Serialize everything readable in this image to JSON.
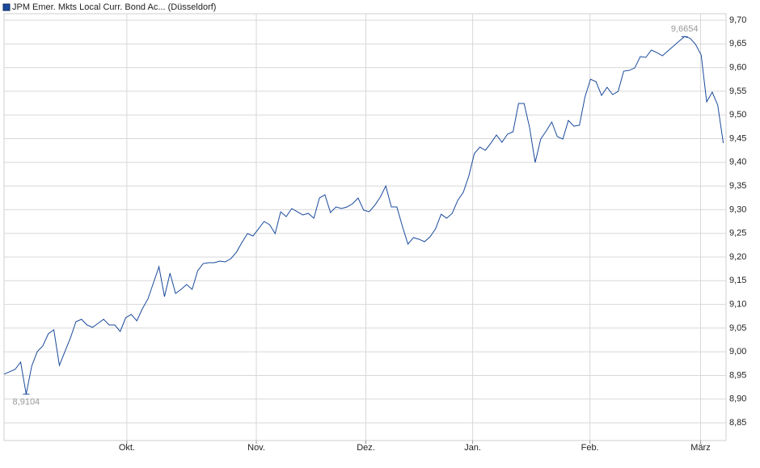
{
  "chart_data": {
    "type": "line",
    "legend": "JPM Emer. Mkts Local Curr. Bond Ac... (Düsseldorf)",
    "series": [
      {
        "name": "JPM Emer. Mkts Local Curr. Bond Ac... (Düsseldorf)",
        "color": "#1a4a9c",
        "values": [
          8.9526,
          8.9577,
          8.9628,
          8.9782,
          8.9104,
          8.9696,
          9.0003,
          9.0123,
          9.0379,
          9.0464,
          8.9713,
          9.0003,
          9.0293,
          9.0635,
          9.0686,
          9.0566,
          9.0515,
          9.0601,
          9.0686,
          9.0566,
          9.0566,
          9.043,
          9.072,
          9.0788,
          9.0652,
          9.0908,
          9.1113,
          9.1454,
          9.1795,
          9.1164,
          9.1659,
          9.1232,
          9.1317,
          9.142,
          9.1317,
          9.171,
          9.1863,
          9.188,
          9.188,
          9.1915,
          9.1898,
          9.1966,
          9.2102,
          9.2307,
          9.2495,
          9.2444,
          9.2597,
          9.2751,
          9.2683,
          9.2495,
          9.2956,
          9.2853,
          9.3024,
          9.2956,
          9.2888,
          9.2922,
          9.282,
          9.3246,
          9.3314,
          9.2939,
          9.3058,
          9.3024,
          9.3058,
          9.3126,
          9.3246,
          9.299,
          9.2956,
          9.3092,
          9.3263,
          9.3502,
          9.3058,
          9.3058,
          9.2648,
          9.2273,
          9.241,
          9.2376,
          9.2324,
          9.2427,
          9.2597,
          9.2904,
          9.282,
          9.2922,
          9.3195,
          9.3365,
          9.3706,
          9.4184,
          9.4321,
          9.4253,
          9.4406,
          9.4577,
          9.4423,
          9.4594,
          9.4645,
          9.5242,
          9.5242,
          9.473,
          9.3997,
          9.4491,
          9.4662,
          9.485,
          9.4543,
          9.4491,
          9.4884,
          9.4764,
          9.4782,
          9.5379,
          9.5754,
          9.5703,
          9.5413,
          9.5584,
          9.543,
          9.5498,
          9.5925,
          9.5942,
          9.5993,
          9.6232,
          9.6215,
          9.6369,
          9.6317,
          9.6249,
          9.6352,
          9.6454,
          9.6556,
          9.6654,
          9.662,
          9.6488,
          9.6266,
          9.5276,
          9.5481,
          9.5208,
          9.4406
        ]
      }
    ],
    "annotations": [
      {
        "value": 8.9104,
        "label": "8,9104"
      },
      {
        "value": 9.6654,
        "label": "9,6654"
      }
    ],
    "xlim": [
      0,
      130.5
    ],
    "xticks": [
      {
        "value": 22.2,
        "label": "Okt."
      },
      {
        "value": 45.6,
        "label": "Nov."
      },
      {
        "value": 65.4,
        "label": "Dez."
      },
      {
        "value": 84.7,
        "label": "Jan."
      },
      {
        "value": 105.9,
        "label": "Feb."
      },
      {
        "value": 125.9,
        "label": "März"
      }
    ],
    "ylim": [
      8.8126,
      9.7137
    ],
    "yticks": [
      {
        "value": 8.85,
        "label": "8,85"
      },
      {
        "value": 8.9,
        "label": "8,90"
      },
      {
        "value": 8.95,
        "label": "8,95"
      },
      {
        "value": 9.0,
        "label": "9,00"
      },
      {
        "value": 9.05,
        "label": "9,05"
      },
      {
        "value": 9.1,
        "label": "9,10"
      },
      {
        "value": 9.15,
        "label": "9,15"
      },
      {
        "value": 9.2,
        "label": "9,20"
      },
      {
        "value": 9.25,
        "label": "9,25"
      },
      {
        "value": 9.3,
        "label": "9,30"
      },
      {
        "value": 9.35,
        "label": "9,35"
      },
      {
        "value": 9.4,
        "label": "9,40"
      },
      {
        "value": 9.45,
        "label": "9,45"
      },
      {
        "value": 9.5,
        "label": "9,50"
      },
      {
        "value": 9.55,
        "label": "9,55"
      },
      {
        "value": 9.6,
        "label": "9,60"
      },
      {
        "value": 9.65,
        "label": "9,65"
      },
      {
        "value": 9.7,
        "label": "9,70"
      }
    ],
    "grid": true
  }
}
